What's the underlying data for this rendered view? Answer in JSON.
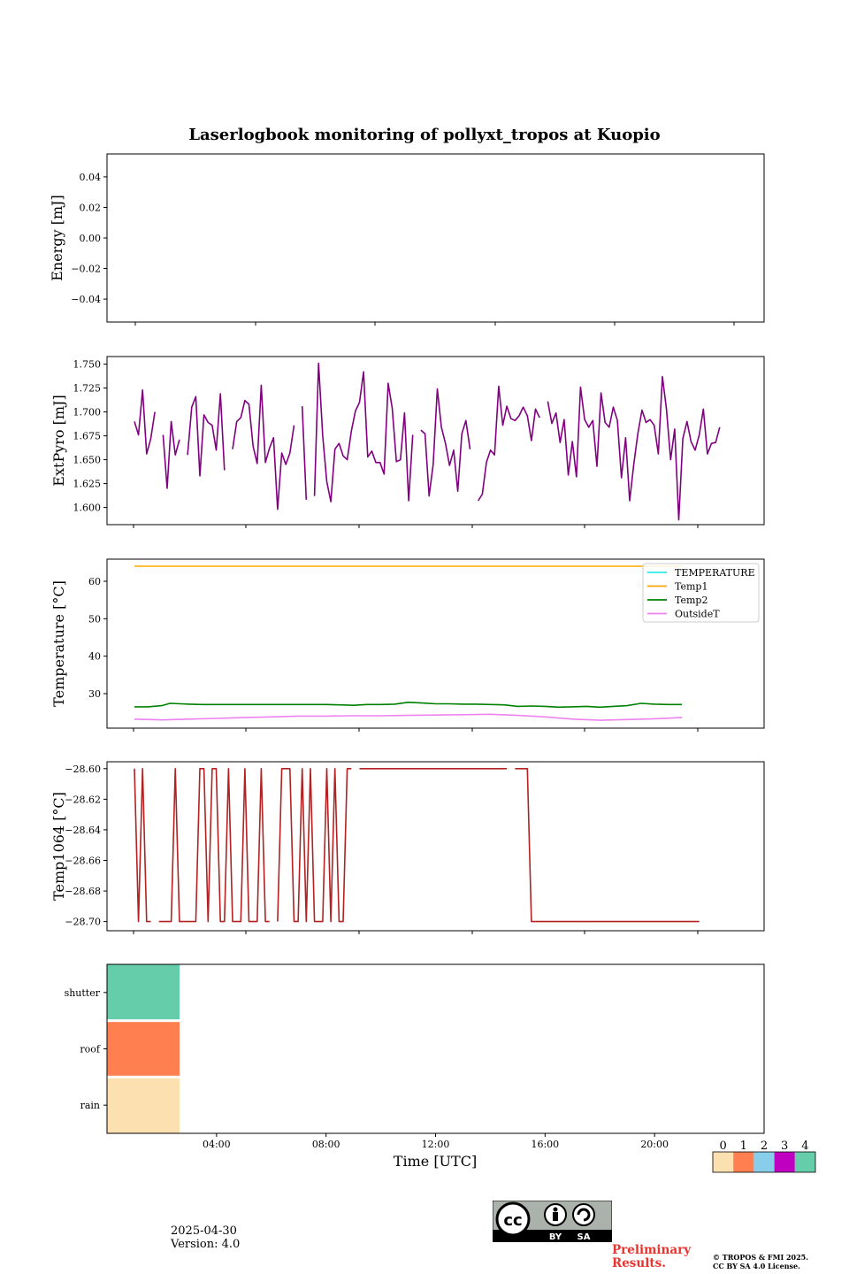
{
  "title": "Laserlogbook monitoring of pollyxt_tropos at Kuopio",
  "footer": {
    "date": "2025-04-30",
    "version": "Version: 4.0",
    "preliminary_line1": "Preliminary",
    "preliminary_line2": "Results.",
    "copyright_line1": "© TROPOS & FMI 2025.",
    "copyright_line2": "CC BY SA 4.0 License.",
    "license_badge": {
      "by": "BY",
      "sa": "SA",
      "icon": "cc-by-sa-icon"
    }
  },
  "chart_data": [
    {
      "type": "line",
      "ylabel": "Energy [mJ]",
      "ylim": [
        -0.055,
        0.055
      ],
      "yticks": [
        -0.04,
        -0.02,
        0.0,
        0.02,
        0.04
      ],
      "ytick_labels": [
        "−0.04",
        "−0.02",
        "0.00",
        "0.02",
        "0.04"
      ],
      "series": []
    },
    {
      "type": "line",
      "ylabel": "ExtPyro [mJ]",
      "ylim": [
        1.582,
        1.758
      ],
      "yticks": [
        1.6,
        1.625,
        1.65,
        1.675,
        1.7,
        1.725,
        1.75
      ],
      "ytick_labels": [
        "1.600",
        "1.625",
        "1.650",
        "1.675",
        "1.700",
        "1.725",
        "1.750"
      ],
      "series": [
        {
          "color": "#800080",
          "x_start_hour": 1.0,
          "x_step_hour": 0.1495,
          "values": [
            1.69,
            1.676,
            1.723,
            1.656,
            1.672,
            1.7,
            null,
            1.676,
            1.62,
            1.69,
            1.655,
            1.671,
            null,
            1.655,
            1.705,
            1.716,
            1.633,
            1.697,
            1.689,
            1.686,
            1.66,
            1.719,
            1.639,
            null,
            1.661,
            1.69,
            1.694,
            1.712,
            1.708,
            1.664,
            1.646,
            1.728,
            1.647,
            1.662,
            1.673,
            1.598,
            1.657,
            1.645,
            1.657,
            1.686,
            null,
            1.706,
            1.608,
            null,
            1.612,
            1.751,
            1.675,
            1.627,
            1.606,
            1.661,
            1.667,
            1.654,
            1.65,
            1.68,
            1.701,
            1.71,
            1.742,
            1.653,
            1.659,
            1.647,
            1.647,
            1.635,
            1.73,
            1.704,
            1.648,
            1.65,
            1.699,
            1.607,
            1.676,
            null,
            1.681,
            1.677,
            1.612,
            1.645,
            1.724,
            1.684,
            1.667,
            1.644,
            1.66,
            1.617,
            1.677,
            1.691,
            1.661,
            null,
            1.607,
            1.614,
            1.647,
            1.66,
            1.655,
            1.727,
            1.686,
            1.706,
            1.693,
            1.691,
            1.696,
            1.705,
            1.696,
            1.67,
            1.703,
            1.694,
            null,
            1.711,
            1.688,
            1.699,
            1.668,
            1.692,
            1.634,
            1.669,
            1.632,
            1.726,
            1.692,
            1.684,
            1.691,
            1.643,
            1.72,
            1.689,
            1.684,
            1.705,
            1.691,
            1.631,
            1.673,
            1.607,
            1.645,
            1.677,
            1.702,
            1.689,
            1.692,
            1.686,
            1.656,
            1.737,
            1.703,
            1.65,
            1.682,
            1.587,
            1.672,
            1.69,
            1.669,
            1.66,
            1.676,
            1.703,
            1.656,
            1.667,
            1.668,
            1.684
          ]
        }
      ]
    },
    {
      "type": "line",
      "ylabel": "Temperature [°C]",
      "ylim": [
        20.8,
        65.9
      ],
      "yticks": [
        30,
        40,
        50,
        60
      ],
      "ytick_labels": [
        "30",
        "40",
        "50",
        "60"
      ],
      "legend_position": "top-right",
      "series": [
        {
          "name": "TEMPERATURE",
          "color": "#33e8e8",
          "x": [],
          "y": []
        },
        {
          "name": "Temp1",
          "color": "#ffa500",
          "x": [
            1.0,
            21.0
          ],
          "y": [
            64.0,
            64.0
          ]
        },
        {
          "name": "Temp2",
          "color": "#008000",
          "x": [
            1.0,
            1.5,
            2.0,
            2.3,
            2.7,
            3.0,
            3.5,
            4.0,
            4.5,
            5.0,
            5.5,
            6.0,
            6.5,
            7.0,
            7.5,
            8.0,
            8.5,
            9.0,
            9.5,
            10.0,
            10.5,
            11.0,
            11.5,
            12.0,
            12.5,
            13.0,
            13.5,
            14.0,
            14.5,
            15.0,
            15.5,
            16.0,
            16.5,
            17.0,
            17.5,
            18.0,
            18.5,
            19.0,
            19.5,
            20.0,
            20.5,
            21.0
          ],
          "y": [
            26.5,
            26.5,
            26.8,
            27.4,
            27.3,
            27.2,
            27.1,
            27.1,
            27.1,
            27.1,
            27.1,
            27.1,
            27.1,
            27.1,
            27.1,
            27.1,
            27.0,
            26.9,
            27.1,
            27.1,
            27.2,
            27.7,
            27.5,
            27.3,
            27.3,
            27.2,
            27.2,
            27.1,
            27.0,
            26.6,
            26.7,
            26.6,
            26.4,
            26.5,
            26.6,
            26.4,
            26.6,
            26.8,
            27.4,
            27.2,
            27.1,
            27.1
          ]
        },
        {
          "name": "OutsideT",
          "color": "#ee82ee",
          "x": [
            1.0,
            2.0,
            3.0,
            4.0,
            5.0,
            6.0,
            7.0,
            8.0,
            9.0,
            10.0,
            11.0,
            12.0,
            13.0,
            14.0,
            15.0,
            16.0,
            17.0,
            18.0,
            19.0,
            20.0,
            21.0
          ],
          "y": [
            23.2,
            23.0,
            23.2,
            23.4,
            23.6,
            23.8,
            24.0,
            24.0,
            24.1,
            24.1,
            24.2,
            24.3,
            24.4,
            24.5,
            24.2,
            23.8,
            23.2,
            22.9,
            23.1,
            23.3,
            23.6
          ]
        }
      ]
    },
    {
      "type": "line",
      "ylabel": "Temp1064 [°C]",
      "ylim": [
        -28.706,
        -28.5955
      ],
      "yticks": [
        -28.7,
        -28.68,
        -28.66,
        -28.64,
        -28.62,
        -28.6
      ],
      "ytick_labels": [
        "−28.70",
        "−28.68",
        "−28.66",
        "−28.64",
        "−28.62",
        "−28.60"
      ],
      "series": [
        {
          "color": "#b22222",
          "x_start_hour": 1.0,
          "x_step_hour": 0.1495,
          "values": [
            -28.6,
            -28.7,
            -28.6,
            -28.7,
            -28.7,
            null,
            -28.7,
            -28.7,
            -28.7,
            -28.7,
            -28.6,
            -28.7,
            -28.7,
            -28.7,
            -28.7,
            -28.7,
            -28.6,
            -28.6,
            -28.7,
            -28.6,
            -28.6,
            -28.7,
            -28.7,
            -28.6,
            -28.7,
            -28.7,
            -28.7,
            -28.6,
            -28.7,
            -28.7,
            -28.7,
            -28.6,
            -28.7,
            -28.7,
            null,
            -28.7,
            -28.6,
            -28.6,
            -28.6,
            -28.7,
            -28.7,
            -28.6,
            -28.7,
            -28.6,
            -28.7,
            -28.7,
            -28.7,
            -28.6,
            -28.7,
            -28.6,
            -28.7,
            -28.7,
            -28.6,
            -28.6,
            null,
            -28.6,
            -28.6,
            -28.6,
            -28.6,
            -28.6,
            -28.6,
            -28.6,
            -28.6,
            -28.6,
            -28.6,
            -28.6,
            -28.6,
            -28.6,
            -28.6,
            -28.6,
            -28.6,
            -28.6,
            -28.6,
            -28.6,
            -28.6,
            -28.6,
            -28.6,
            -28.6,
            -28.6,
            -28.6,
            -28.6,
            -28.6,
            -28.6,
            -28.6,
            -28.6,
            -28.6,
            -28.6,
            -28.6,
            -28.6,
            -28.6,
            -28.6,
            -28.6,
            null,
            -28.6,
            -28.6,
            -28.6,
            -28.6,
            -28.7,
            -28.7,
            -28.7,
            -28.7,
            -28.7,
            -28.7,
            -28.7,
            -28.7,
            -28.7,
            -28.7,
            -28.7,
            -28.7,
            -28.7,
            -28.7,
            -28.7,
            -28.7,
            -28.7,
            -28.7,
            -28.7,
            -28.7,
            -28.7,
            -28.7,
            -28.7,
            -28.7,
            -28.7,
            -28.7,
            -28.7,
            -28.7,
            -28.7,
            -28.7,
            -28.7,
            -28.7,
            -28.7,
            -28.7,
            -28.7,
            -28.7,
            -28.7,
            -28.7,
            -28.7,
            -28.7,
            -28.7,
            -28.7
          ]
        }
      ]
    },
    {
      "type": "heatmap",
      "xlabel": "Time [UTC]",
      "xlim_hours": [
        0,
        24
      ],
      "xticks": [
        "04:00",
        "08:00",
        "12:00",
        "16:00",
        "20:00"
      ],
      "xtick_hours": [
        4,
        8,
        12,
        16,
        20
      ],
      "rows": [
        "shutter",
        "roof",
        "rain"
      ],
      "row_values": [
        4,
        1,
        0
      ],
      "filled_until_hour": 2.65,
      "colorbar": {
        "ticks": [
          "0",
          "1",
          "2",
          "3",
          "4"
        ],
        "colors": [
          "#fde0b0",
          "#ff7f50",
          "#87ceeb",
          "#c000c0",
          "#66cdaa"
        ]
      }
    }
  ]
}
